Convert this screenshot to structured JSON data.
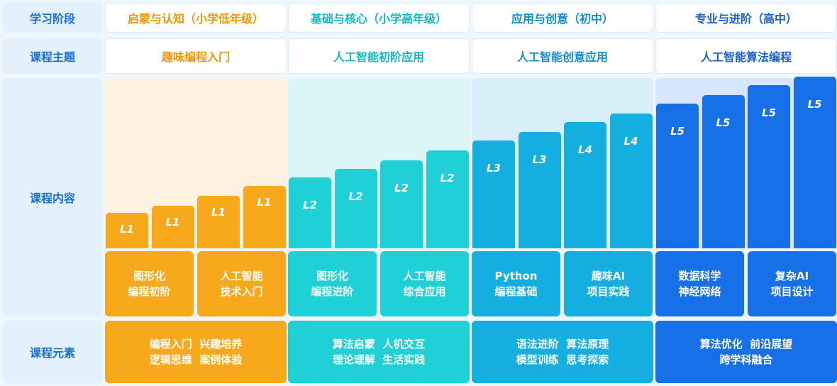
{
  "row_labels": {
    "stage": "学习阶段",
    "topic": "课程主题",
    "content": "课程内容",
    "elements": "课程元素"
  },
  "stages": [
    {
      "name": "启蒙与认知（小学低年级）",
      "topic": "趣味编程入门",
      "color": "#f7a81b",
      "text_color": "#f39800",
      "levels": [
        "L1",
        "L1",
        "L1",
        "L1"
      ],
      "subs": [
        [
          "图形化",
          "编程初阶"
        ],
        [
          "人工智能",
          "技术入门"
        ]
      ],
      "elements": [
        "编程入门  兴趣培养",
        "逻辑思维  案例体验"
      ]
    },
    {
      "name": "基础与核心（小学高年级）",
      "topic": "人工智能初阶应用",
      "color": "#1fd0d6",
      "text_color": "#10b9c4",
      "levels": [
        "L2",
        "L2",
        "L2",
        "L2"
      ],
      "subs": [
        [
          "图形化",
          "编程进阶"
        ],
        [
          "人工智能",
          "综合应用"
        ]
      ],
      "elements": [
        "算法启蒙  人机交互",
        "理论理解  生活实践"
      ]
    },
    {
      "name": "应用与创意（初中）",
      "topic": "人工智能创意应用",
      "color": "#14aee0",
      "text_color": "#0f8fcf",
      "levels": [
        "L3",
        "L3",
        "L4",
        "L4"
      ],
      "subs": [
        [
          "Python",
          "编程基础"
        ],
        [
          "趣味AI",
          "项目实践"
        ]
      ],
      "elements": [
        "语法进阶  算法原理",
        "模型训练  思考探索"
      ]
    },
    {
      "name": "专业与进阶（高中）",
      "topic": "人工智能算法编程",
      "color": "#1670e8",
      "text_color": "#1a5fd0",
      "levels": [
        "L5",
        "L5",
        "L5",
        "L5"
      ],
      "subs": [
        [
          "数据科学",
          "神经网络"
        ],
        [
          "复杂AI",
          "项目设计"
        ]
      ],
      "elements": [
        "算法优化  前沿展望",
        "跨学科融合"
      ]
    }
  ]
}
